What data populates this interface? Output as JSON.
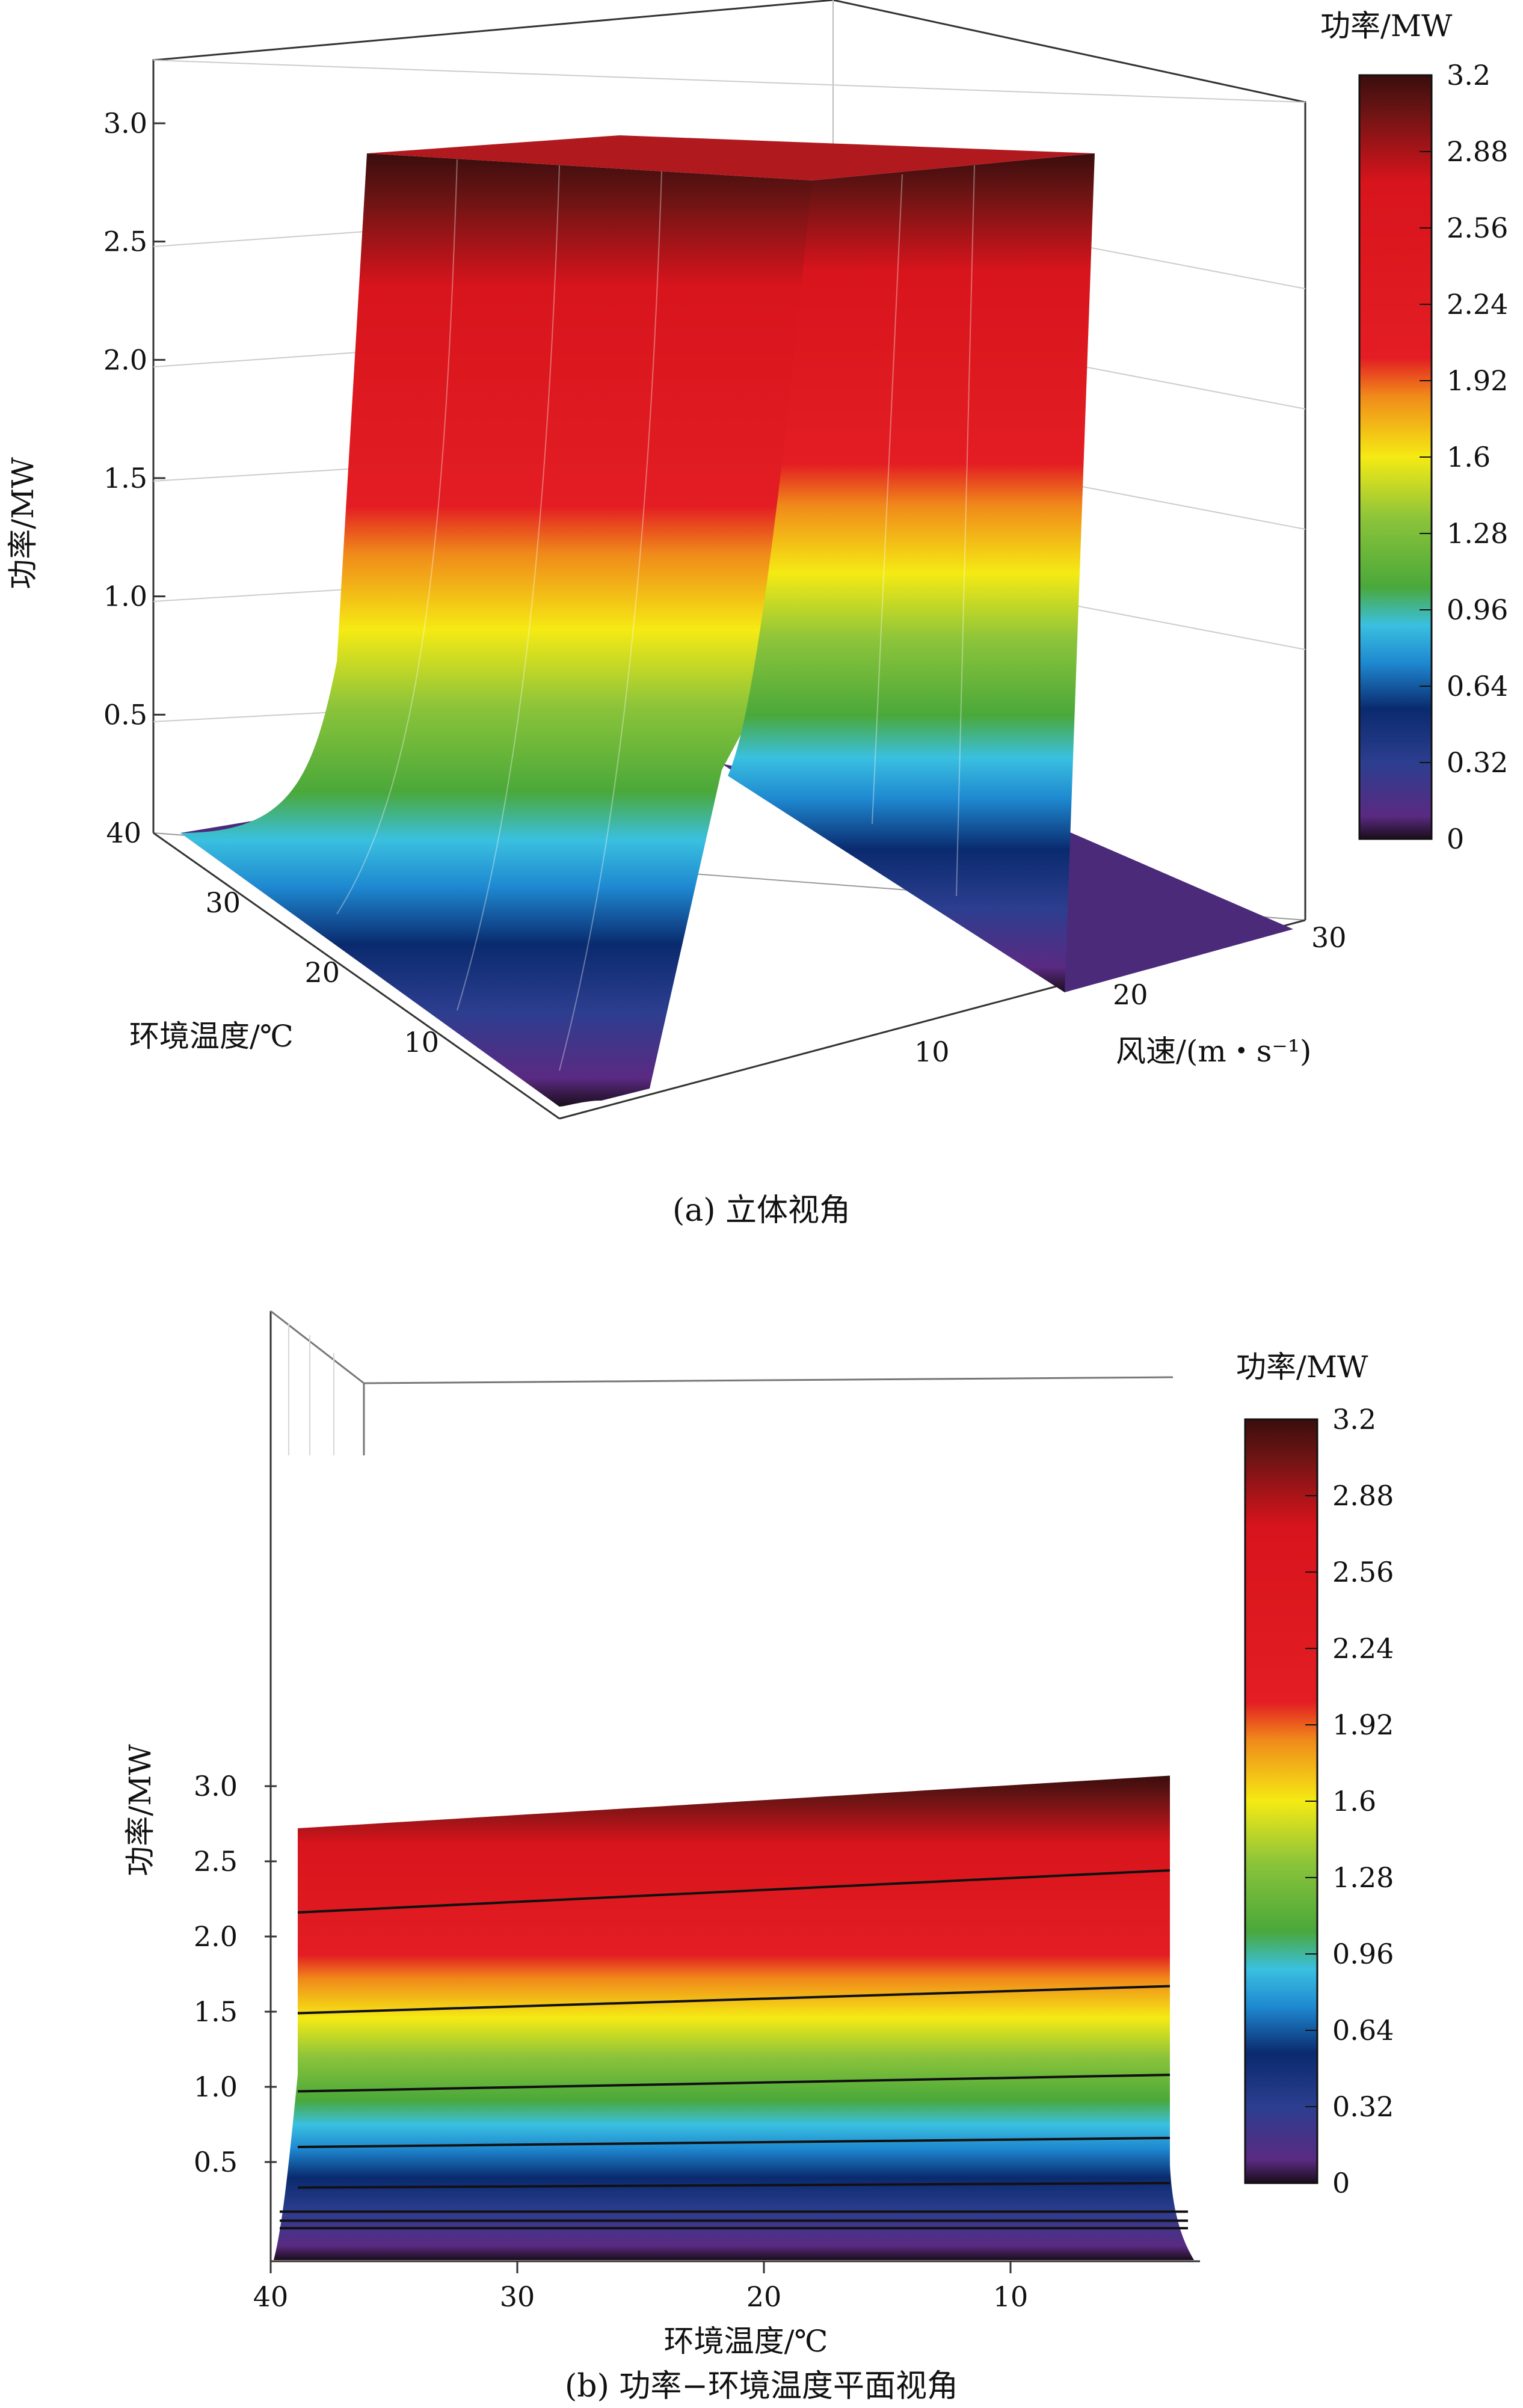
{
  "chart_data": [
    {
      "type": "surface3d",
      "caption": "(a) 立体视角",
      "zlabel": "功率/MW",
      "xlabel": "环境温度/℃",
      "ylabel": "风速/(m・s⁻¹)",
      "z_ticks": [
        "3.0",
        "2.5",
        "2.0",
        "1.5",
        "1.0",
        "0.5"
      ],
      "temp_ticks": [
        "40",
        "30",
        "20",
        "10"
      ],
      "wind_ticks": [
        "30",
        "20",
        "10"
      ],
      "zlim": [
        0,
        3.2
      ],
      "colorbar": {
        "title": "功率/MW",
        "ticks": [
          "3.2",
          "2.88",
          "2.56",
          "2.24",
          "1.92",
          "1.6",
          "1.28",
          "0.96",
          "0.64",
          "0.32",
          "0"
        ]
      }
    },
    {
      "type": "surface-side-view",
      "caption": "(b) 功率−环境温度平面视角",
      "ylabel": "功率/MW",
      "xlabel": "环境温度/℃",
      "y_ticks": [
        "3.0",
        "2.5",
        "2.0",
        "1.5",
        "1.0",
        "0.5"
      ],
      "x_ticks": [
        "40",
        "30",
        "20",
        "10"
      ],
      "ylim": [
        0,
        3.2
      ],
      "x": [
        40,
        2
      ],
      "top_edge_power": [
        2.72,
        3.07
      ],
      "contour_lines": [
        {
          "left": 2.16,
          "right": 2.44
        },
        {
          "left": 1.49,
          "right": 1.67
        },
        {
          "left": 0.97,
          "right": 1.08
        },
        {
          "left": 0.6,
          "right": 0.66
        },
        {
          "left": 0.33,
          "right": 0.36
        },
        {
          "left": 0.17,
          "right": 0.17
        },
        {
          "left": 0.11,
          "right": 0.11
        },
        {
          "left": 0.06,
          "right": 0.06
        }
      ],
      "colorbar": {
        "title": "功率/MW",
        "ticks": [
          "3.2",
          "2.88",
          "2.56",
          "2.24",
          "1.92",
          "1.6",
          "1.28",
          "0.96",
          "0.64",
          "0.32",
          "0"
        ]
      }
    }
  ],
  "colormap": [
    "#1a0d1a",
    "#5a2a82",
    "#2c3e8f",
    "#0a2a6e",
    "#1e88d0",
    "#3ac0e0",
    "#4aa83a",
    "#8cc43a",
    "#f5ea14",
    "#f08a1a",
    "#e31d23",
    "#e31d23",
    "#d8141c",
    "#6e1414",
    "#3a0d0d"
  ]
}
